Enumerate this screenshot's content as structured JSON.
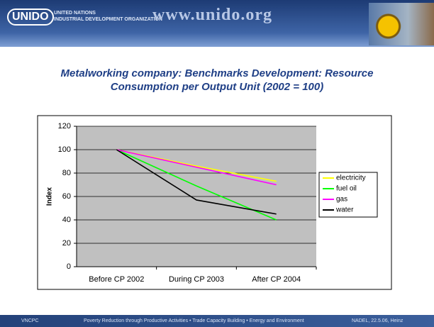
{
  "header": {
    "logo": "UNIDO",
    "org_line1": "UNITED NATIONS",
    "org_line2": "INDUSTRIAL DEVELOPMENT ORGANIZATION",
    "url": "www.unido.org"
  },
  "chart_data": {
    "type": "line",
    "title": "Metalworking company: Benchmarks Development: Resource Consumption per Output Unit (2002 = 100)",
    "y_label": "Index",
    "categories": [
      "Before CP 2002",
      "During CP 2003",
      "After CP 2004"
    ],
    "series": [
      {
        "name": "electricity",
        "color": "#ffff00",
        "values": [
          100,
          86,
          73
        ]
      },
      {
        "name": "fuel oil",
        "color": "#00ff00",
        "values": [
          100,
          69,
          40
        ]
      },
      {
        "name": "gas",
        "color": "#ff00ff",
        "values": [
          100,
          85,
          70
        ]
      },
      {
        "name": "water",
        "color": "#000000",
        "values": [
          100,
          57,
          45
        ]
      }
    ],
    "ylim": [
      0,
      120
    ],
    "yticks": [
      0,
      20,
      40,
      60,
      80,
      100,
      120
    ],
    "grid": true,
    "legend": "right"
  },
  "footer": {
    "left": "VNCPC",
    "center": "Poverty Reduction through Productive Activities  •  Trade Capacity Building  •  Energy and Environment",
    "right": "NADEL, 22.5.06, Heinz"
  }
}
